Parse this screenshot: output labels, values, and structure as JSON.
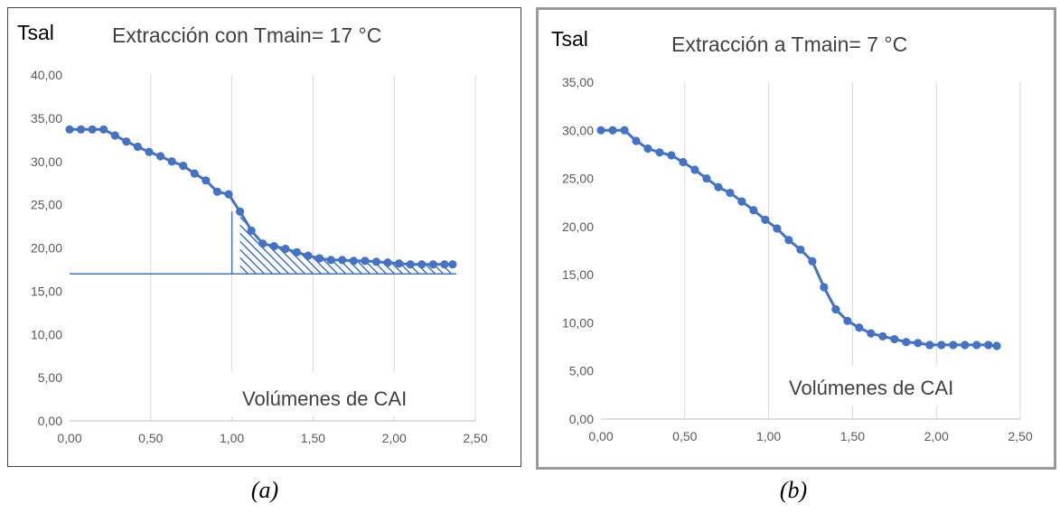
{
  "captions": {
    "a": "(a)",
    "b": "(b)"
  },
  "colors": {
    "series": "#4472c4",
    "grid": "#d9d9d9",
    "axis": "#bfbfbf"
  },
  "chart_data": [
    {
      "type": "line",
      "title": "Extracción con Tmain= 17 °C",
      "ylabel": "Tsal",
      "xlabel": "Volúmenes de CAI",
      "xlim": [
        0,
        2.5
      ],
      "ylim": [
        0,
        40
      ],
      "x_ticks": [
        "0,00",
        "0,50",
        "1,00",
        "1,50",
        "2,00",
        "2,50"
      ],
      "y_ticks": [
        "0,00",
        "5,00",
        "10,00",
        "15,00",
        "20,00",
        "25,00",
        "30,00",
        "35,00",
        "40,00"
      ],
      "grid": "vertical",
      "reference_line": 17,
      "hatched_region": {
        "x_from": 1.0,
        "x_to": 2.36,
        "down_to": 17
      },
      "series": [
        {
          "x": [
            0.0,
            0.07,
            0.14,
            0.21,
            0.28,
            0.35,
            0.42,
            0.49,
            0.56,
            0.63,
            0.7,
            0.77,
            0.84,
            0.91,
            0.98,
            1.05,
            1.12,
            1.19,
            1.26,
            1.33,
            1.4,
            1.47,
            1.54,
            1.61,
            1.68,
            1.75,
            1.82,
            1.89,
            1.96,
            2.03,
            2.1,
            2.17,
            2.24,
            2.31,
            2.36
          ],
          "y": [
            33.7,
            33.7,
            33.7,
            33.7,
            33.0,
            32.3,
            31.7,
            31.1,
            30.6,
            30.0,
            29.5,
            28.6,
            27.8,
            26.5,
            26.2,
            24.2,
            22.0,
            20.5,
            20.2,
            19.9,
            19.5,
            19.1,
            18.8,
            18.6,
            18.6,
            18.5,
            18.5,
            18.4,
            18.3,
            18.2,
            18.1,
            18.1,
            18.1,
            18.1,
            18.1
          ]
        }
      ]
    },
    {
      "type": "line",
      "title": "Extracción a Tmain= 7 °C",
      "ylabel": "Tsal",
      "xlabel": "Volúmenes de CAI",
      "xlim": [
        0,
        2.5
      ],
      "ylim": [
        0,
        35
      ],
      "x_ticks": [
        "0,00",
        "0,50",
        "1,00",
        "1,50",
        "2,00",
        "2,50"
      ],
      "y_ticks": [
        "0,00",
        "5,00",
        "10,00",
        "15,00",
        "20,00",
        "25,00",
        "30,00",
        "35,00"
      ],
      "grid": "vertical",
      "series": [
        {
          "x": [
            0.0,
            0.07,
            0.14,
            0.21,
            0.28,
            0.35,
            0.42,
            0.49,
            0.56,
            0.63,
            0.7,
            0.77,
            0.84,
            0.91,
            0.98,
            1.05,
            1.12,
            1.19,
            1.26,
            1.33,
            1.4,
            1.47,
            1.54,
            1.61,
            1.68,
            1.75,
            1.82,
            1.89,
            1.96,
            2.03,
            2.1,
            2.17,
            2.24,
            2.31,
            2.36
          ],
          "y": [
            30.0,
            30.0,
            30.0,
            28.9,
            28.1,
            27.7,
            27.4,
            26.7,
            25.9,
            25.0,
            24.1,
            23.5,
            22.6,
            21.7,
            20.7,
            19.8,
            18.6,
            17.6,
            16.4,
            13.7,
            11.4,
            10.2,
            9.5,
            8.9,
            8.6,
            8.3,
            8.0,
            7.9,
            7.7,
            7.7,
            7.7,
            7.7,
            7.7,
            7.7,
            7.6
          ]
        }
      ]
    }
  ]
}
